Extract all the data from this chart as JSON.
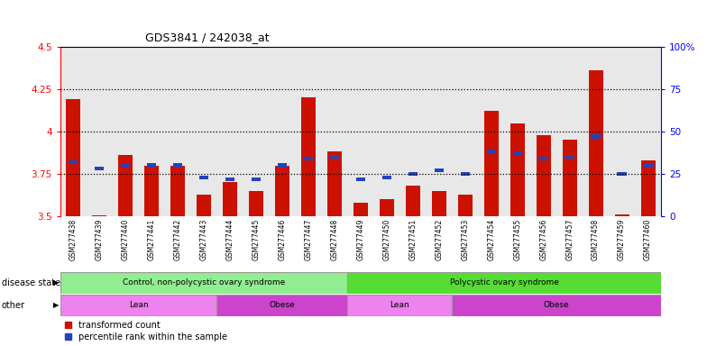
{
  "title": "GDS3841 / 242038_at",
  "samples": [
    "GSM277438",
    "GSM277439",
    "GSM277440",
    "GSM277441",
    "GSM277442",
    "GSM277443",
    "GSM277444",
    "GSM277445",
    "GSM277446",
    "GSM277447",
    "GSM277448",
    "GSM277449",
    "GSM277450",
    "GSM277451",
    "GSM277452",
    "GSM277453",
    "GSM277454",
    "GSM277455",
    "GSM277456",
    "GSM277457",
    "GSM277458",
    "GSM277459",
    "GSM277460"
  ],
  "red_values": [
    4.19,
    3.505,
    3.86,
    3.8,
    3.8,
    3.63,
    3.7,
    3.65,
    3.8,
    4.2,
    3.88,
    3.58,
    3.6,
    3.68,
    3.65,
    3.63,
    4.12,
    4.05,
    3.98,
    3.95,
    4.36,
    3.51,
    3.83
  ],
  "blue_values": [
    32,
    28,
    30,
    30,
    30,
    23,
    22,
    22,
    30,
    34,
    35,
    22,
    23,
    25,
    27,
    25,
    38,
    37,
    34,
    35,
    47,
    25,
    30
  ],
  "ymin": 3.5,
  "ymax": 4.5,
  "yticks_left": [
    3.5,
    3.75,
    4.0,
    4.25,
    4.5
  ],
  "ytick_labels_left": [
    "3.5",
    "3.75",
    "4",
    "4.25",
    "4.5"
  ],
  "y2min": 0,
  "y2max": 100,
  "y2ticks": [
    0,
    25,
    50,
    75,
    100
  ],
  "y2tick_labels": [
    "0",
    "25",
    "50",
    "75",
    "100%"
  ],
  "hlines": [
    3.75,
    4.0,
    4.25
  ],
  "disease_state": [
    {
      "label": "Control, non-polycystic ovary syndrome",
      "start": 0,
      "end": 10,
      "color": "#90EE90"
    },
    {
      "label": "Polycystic ovary syndrome",
      "start": 11,
      "end": 22,
      "color": "#55DD33"
    }
  ],
  "other": [
    {
      "label": "Lean",
      "start": 0,
      "end": 5,
      "color": "#EE82EE"
    },
    {
      "label": "Obese",
      "start": 6,
      "end": 10,
      "color": "#CC44CC"
    },
    {
      "label": "Lean",
      "start": 11,
      "end": 14,
      "color": "#EE82EE"
    },
    {
      "label": "Obese",
      "start": 15,
      "end": 22,
      "color": "#CC44CC"
    }
  ],
  "bar_color": "#CC1100",
  "blue_color": "#2244BB",
  "tick_bg_color": "#BBBBBB",
  "legend": [
    "transformed count",
    "percentile rank within the sample"
  ]
}
